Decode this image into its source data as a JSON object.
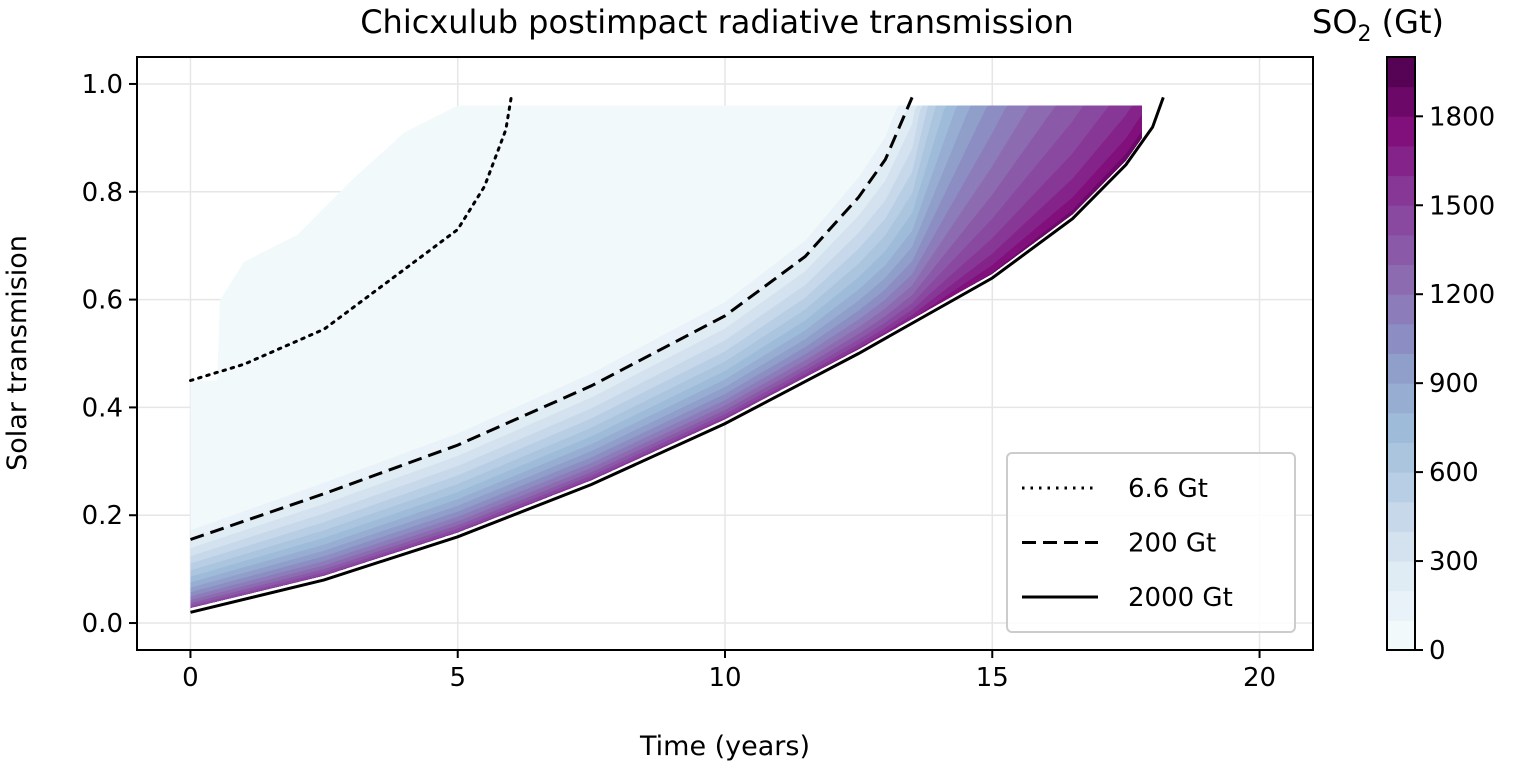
{
  "chart_data": {
    "type": "line",
    "title": "Chicxulub postimpact radiative transmission",
    "xlabel": "Time (years)",
    "ylabel": "Solar transmision",
    "xlim": [
      -1,
      21
    ],
    "ylim": [
      -0.05,
      1.05
    ],
    "xticks": [
      "0",
      "5",
      "10",
      "15",
      "20"
    ],
    "yticks": [
      "0.0",
      "0.2",
      "0.4",
      "0.6",
      "0.8",
      "1.0"
    ],
    "grid": true,
    "legend_position": "lower-right",
    "series": [
      {
        "name": "6.6 Gt",
        "style": "dotted",
        "x": [
          0,
          1,
          2.5,
          4,
          5,
          5.5,
          5.9,
          6.0
        ],
        "y": [
          0.45,
          0.48,
          0.545,
          0.656,
          0.73,
          0.81,
          0.915,
          0.975
        ]
      },
      {
        "name": "200 Gt",
        "style": "dashed",
        "x": [
          0,
          2.5,
          5,
          7.5,
          10,
          11.5,
          12.5,
          13,
          13.5
        ],
        "y": [
          0.155,
          0.24,
          0.33,
          0.44,
          0.57,
          0.68,
          0.79,
          0.86,
          0.975
        ]
      },
      {
        "name": "2000 Gt",
        "style": "solid",
        "x": [
          0,
          2.5,
          5,
          7.5,
          10,
          12.5,
          15,
          16.5,
          17.5,
          18,
          18.2
        ],
        "y": [
          0.02,
          0.08,
          0.16,
          0.257,
          0.37,
          0.5,
          0.64,
          0.75,
          0.85,
          0.92,
          0.975
        ]
      }
    ],
    "filled_contour": {
      "variable": "SO2 (Gt)",
      "levels_min": 0,
      "levels_max": 2000,
      "level_step": 100,
      "colormap": [
        "#f7fcfd",
        "#e0ecf4",
        "#bfd3e6",
        "#9ebcda",
        "#8c96c6",
        "#8c6bb1",
        "#88419d",
        "#810f7c",
        "#4d004b"
      ]
    },
    "colorbar": {
      "label_main": "SO",
      "label_sub": "2",
      "label_unit": " (Gt)",
      "ticks": [
        "0",
        "300",
        "600",
        "900",
        "1200",
        "1500",
        "1800"
      ]
    }
  }
}
